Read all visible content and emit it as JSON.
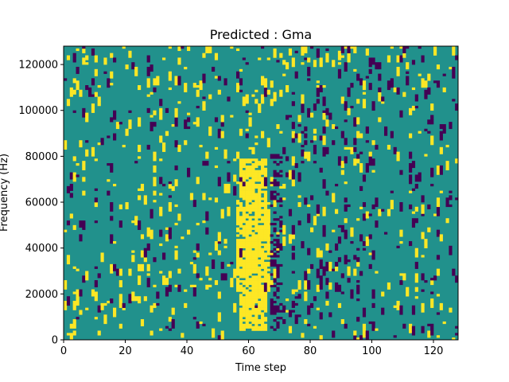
{
  "chart_data": {
    "type": "heatmap",
    "title": "Predicted : Gma",
    "xlabel": "Time step",
    "ylabel": "Frequency (Hz)",
    "xlim": [
      0,
      128
    ],
    "ylim": [
      0,
      128000
    ],
    "x_ticks": [
      0,
      20,
      40,
      60,
      80,
      100,
      120
    ],
    "y_ticks": [
      0,
      20000,
      40000,
      60000,
      80000,
      100000,
      120000
    ],
    "grid": false,
    "legend": "none",
    "value_levels": [
      -1,
      0,
      1
    ],
    "colors": {
      "-1": "#440154",
      "0": "#21918c",
      "1": "#fde725"
    },
    "time_steps": 128,
    "frequency_bins": 128,
    "bin_width_hz": 1000,
    "background_value": 0,
    "dominant_activity": "dense positive (yellow) band around time steps 57-65 across 4000-78000 Hz; negative (purple) column near time steps 67-70; sparse scattered cells elsewhere"
  }
}
